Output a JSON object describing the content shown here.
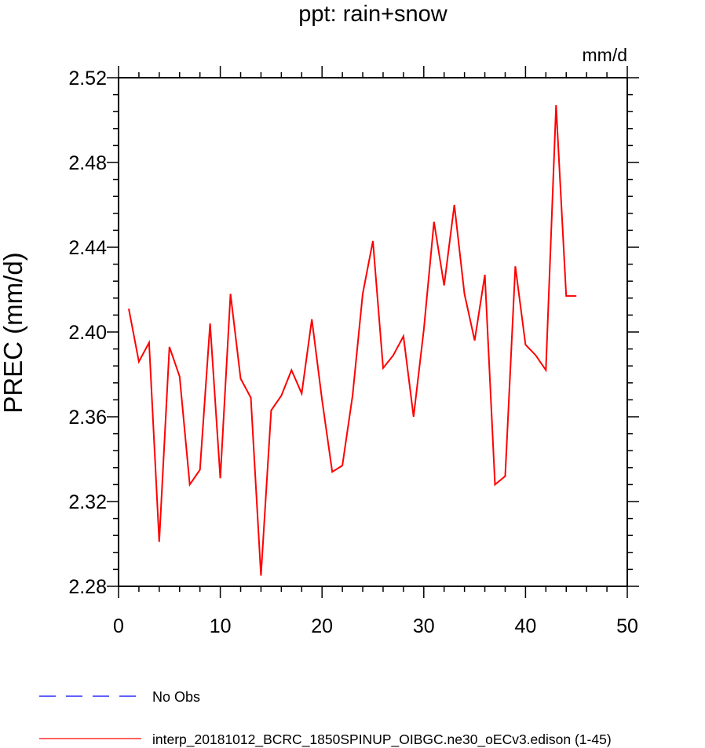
{
  "chart_data": {
    "type": "line",
    "title": "ppt: rain+snow",
    "units_label": "mm/d",
    "ylabel": "PREC  (mm/d)",
    "xlabel": "",
    "xlim": [
      0,
      50
    ],
    "ylim": [
      2.28,
      2.52
    ],
    "xticks": [
      0,
      10,
      20,
      30,
      40,
      50
    ],
    "yticks": [
      2.28,
      2.32,
      2.36,
      2.4,
      2.44,
      2.48,
      2.52
    ],
    "ytick_labels": [
      "2.28",
      "2.32",
      "2.36",
      "2.40",
      "2.44",
      "2.48",
      "2.52"
    ],
    "grid": false,
    "legend_position": "bottom-left",
    "series": [
      {
        "name": "interp_20181012_BCRC_1850SPINUP_OIBGC.ne30_oECv3.edison (1-45)",
        "color": "#ff0000",
        "dash": "solid",
        "x": [
          1,
          2,
          3,
          4,
          5,
          6,
          7,
          8,
          9,
          10,
          11,
          12,
          13,
          14,
          15,
          16,
          17,
          18,
          19,
          20,
          21,
          22,
          23,
          24,
          25,
          26,
          27,
          28,
          29,
          30,
          31,
          32,
          33,
          34,
          35,
          36,
          37,
          38,
          39,
          40,
          41,
          42,
          43,
          44,
          45
        ],
        "values": [
          2.411,
          2.386,
          2.395,
          2.301,
          2.393,
          2.379,
          2.328,
          2.335,
          2.404,
          2.331,
          2.418,
          2.378,
          2.369,
          2.285,
          2.363,
          2.37,
          2.382,
          2.371,
          2.406,
          2.368,
          2.334,
          2.337,
          2.37,
          2.418,
          2.443,
          2.383,
          2.389,
          2.398,
          2.36,
          2.401,
          2.452,
          2.422,
          2.46,
          2.418,
          2.396,
          2.427,
          2.328,
          2.332,
          2.431,
          2.394,
          2.389,
          2.382,
          2.507,
          2.417,
          2.417
        ]
      }
    ],
    "legend": [
      {
        "label": "No Obs",
        "color": "#0000ff",
        "dash": "dashed"
      },
      {
        "label": "interp_20181012_BCRC_1850SPINUP_OIBGC.ne30_oECv3.edison (1-45)",
        "color": "#ff0000",
        "dash": "solid"
      }
    ]
  }
}
